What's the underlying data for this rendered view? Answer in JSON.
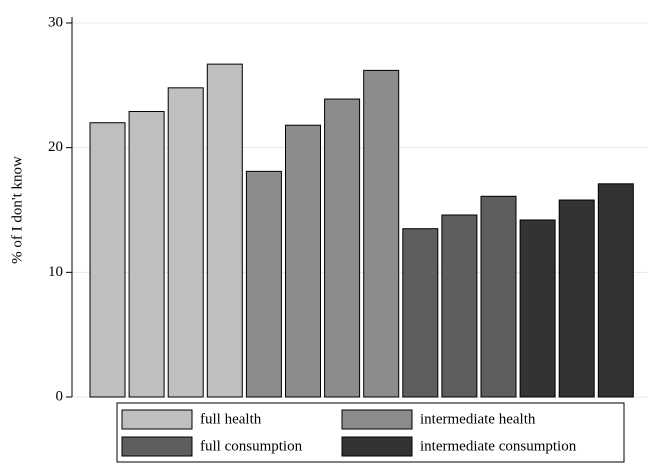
{
  "chart_data": {
    "type": "bar",
    "ylabel": "% of I don't know",
    "categories": [
      null,
      null,
      null,
      null,
      null,
      null,
      null,
      null,
      null,
      null,
      null,
      null,
      null,
      null
    ],
    "series": [
      {
        "name": "full health",
        "color": "#bfbfbf",
        "values": [
          22.0,
          22.9,
          24.8,
          26.7,
          null,
          null,
          null,
          null,
          null,
          null,
          null,
          null,
          null,
          null
        ]
      },
      {
        "name": "intermediate health",
        "color": "#8c8c8c",
        "values": [
          null,
          null,
          null,
          null,
          18.1,
          21.8,
          23.9,
          26.2,
          null,
          null,
          null,
          null,
          null,
          null
        ]
      },
      {
        "name": "full consumption",
        "color": "#5e5e5e",
        "values": [
          null,
          null,
          null,
          null,
          null,
          null,
          null,
          null,
          13.5,
          14.6,
          16.1,
          null,
          null,
          null
        ]
      },
      {
        "name": "intermediate consumption",
        "color": "#333333",
        "values": [
          null,
          null,
          null,
          null,
          null,
          null,
          null,
          null,
          null,
          null,
          null,
          14.2,
          15.8,
          17.1
        ]
      }
    ],
    "ylim": [
      0,
      30
    ],
    "yticks": [
      0,
      10,
      20,
      30
    ],
    "grid": true
  }
}
